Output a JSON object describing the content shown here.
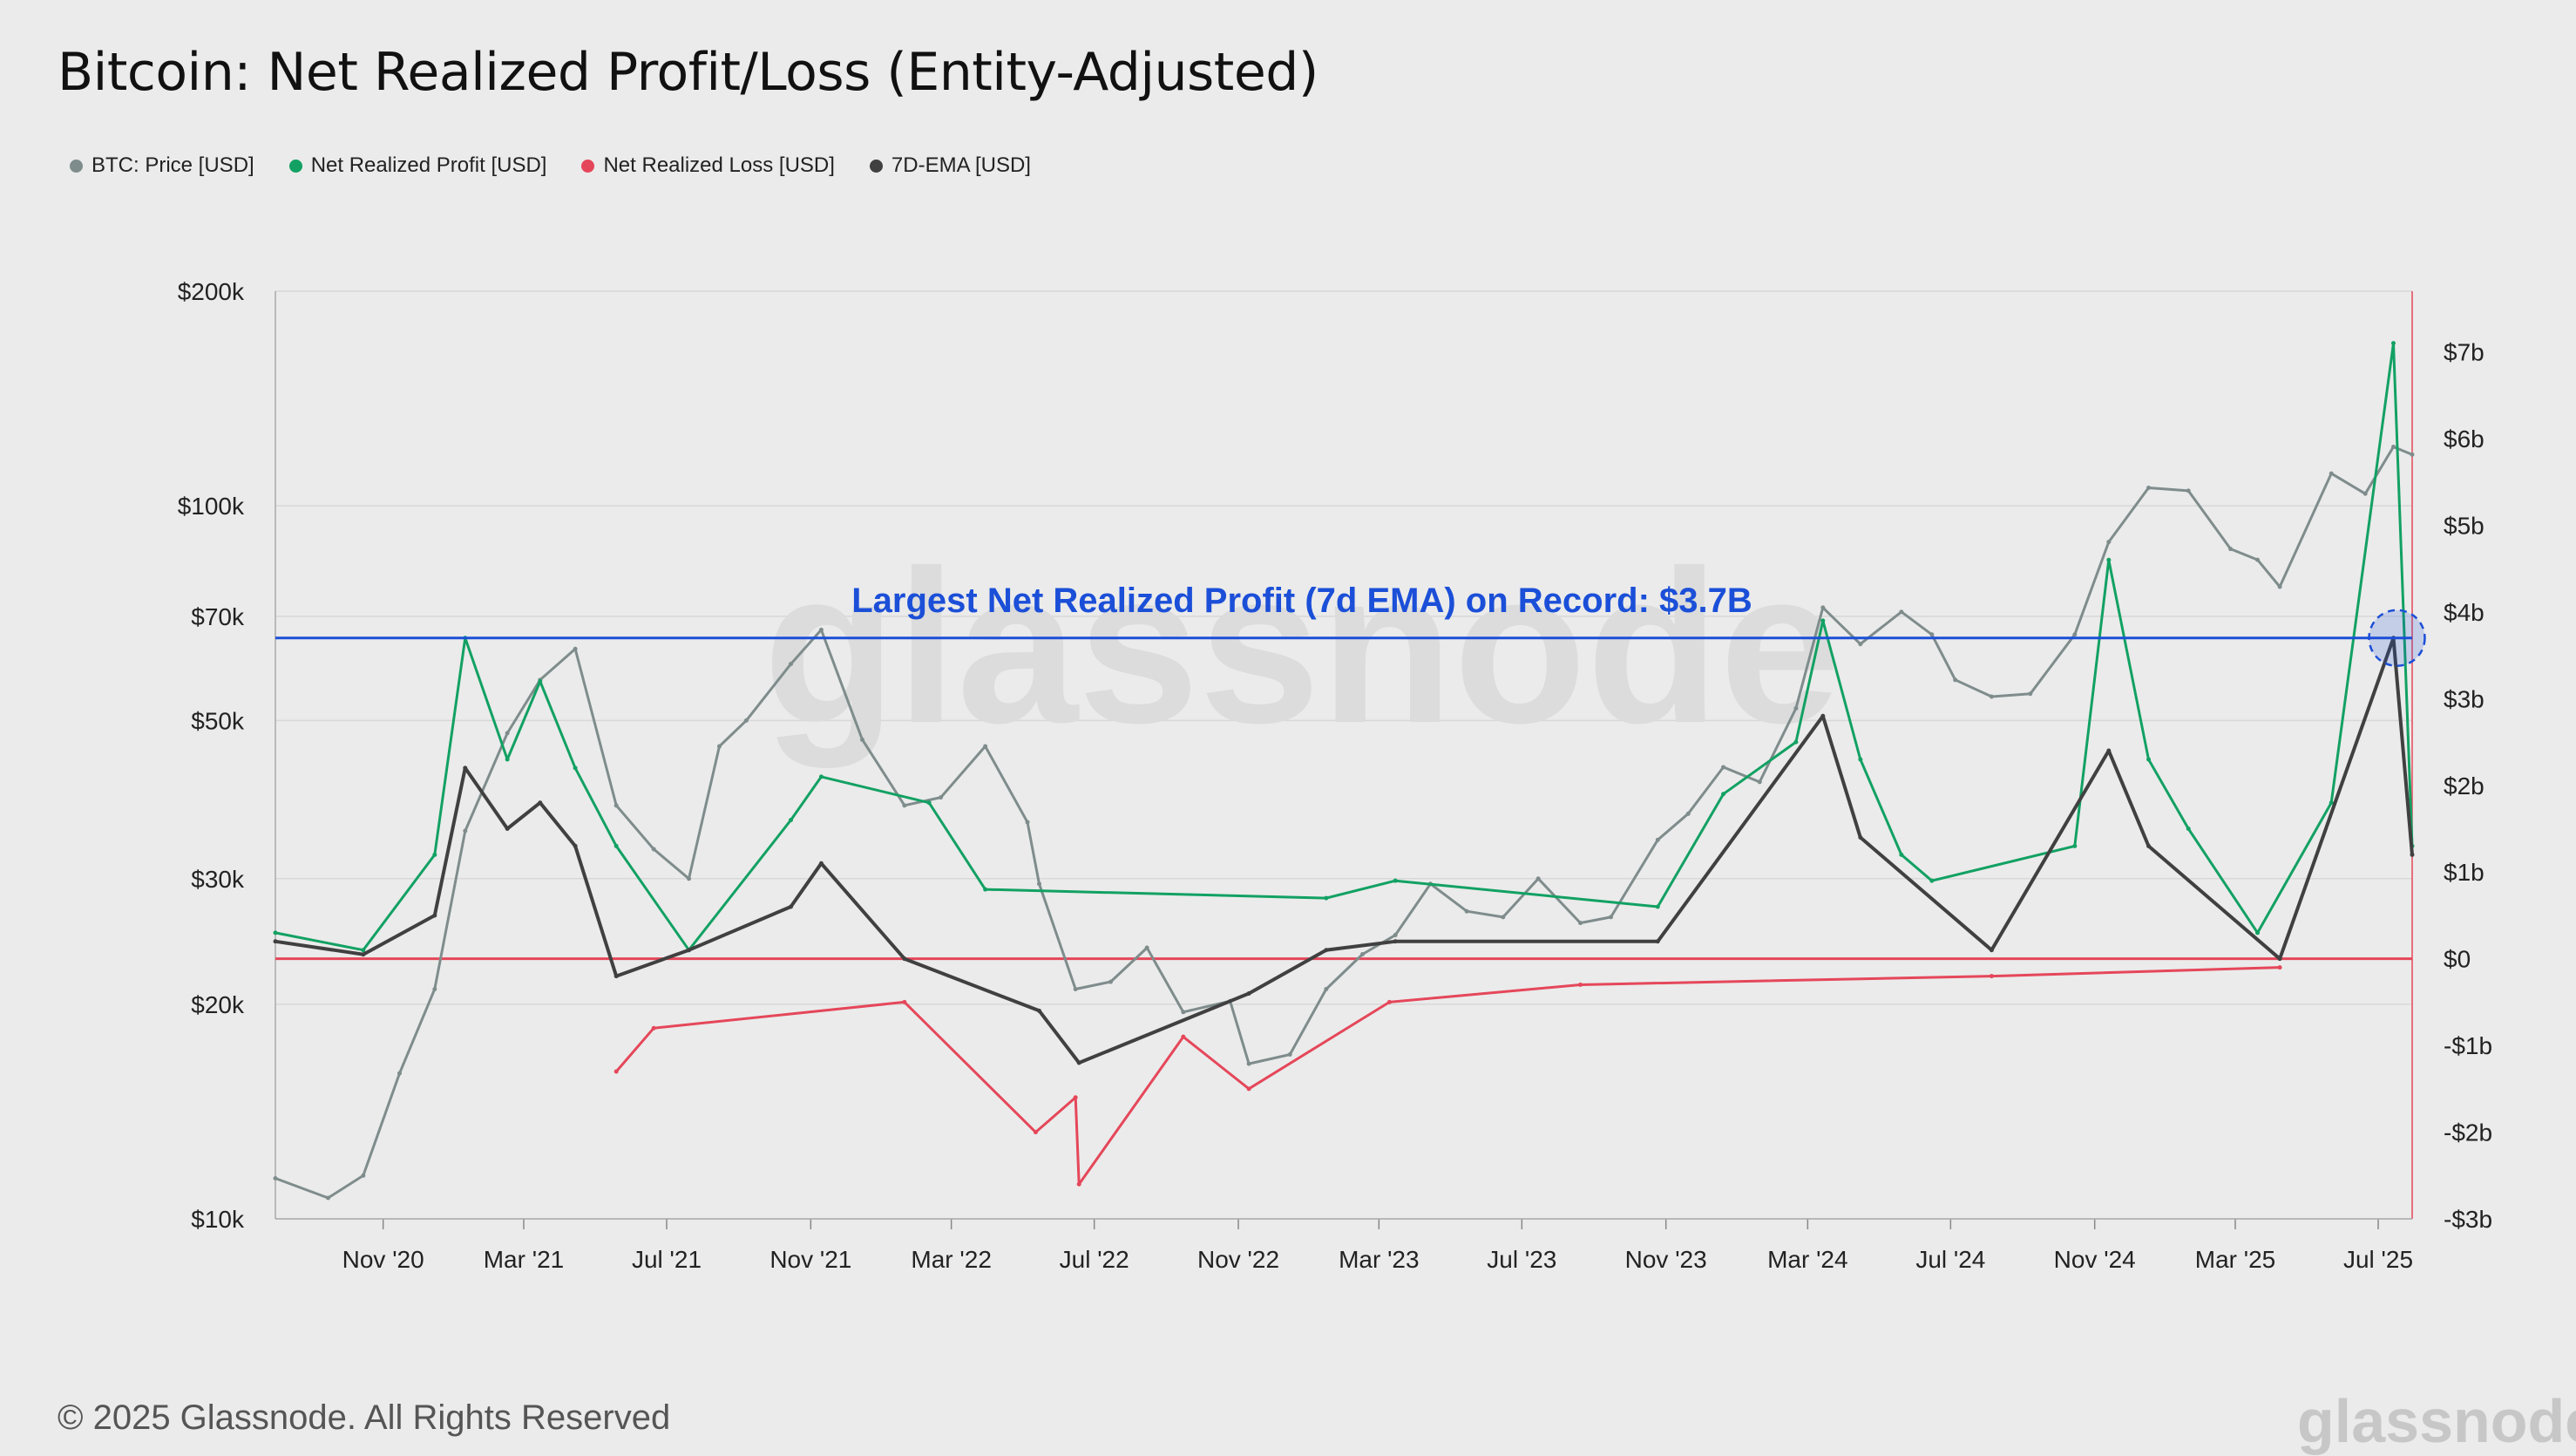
{
  "chart_data": {
    "type": "line",
    "title": "Bitcoin: Net Realized Profit/Loss (Entity-Adjusted)",
    "legend": [
      {
        "name": "BTC: Price [USD]",
        "color": "#7f8c8c"
      },
      {
        "name": "Net Realized Profit [USD]",
        "color": "#12a163"
      },
      {
        "name": "Net Realized Loss [USD]",
        "color": "#e5475a"
      },
      {
        "name": "7D-EMA [USD]",
        "color": "#404040"
      }
    ],
    "legend_position": "top-left",
    "x_ticks": [
      "Nov '20",
      "Mar '21",
      "Jul '21",
      "Nov '21",
      "Mar '22",
      "Jul '22",
      "Nov '22",
      "Mar '23",
      "Jul '23",
      "Nov '23",
      "Mar '24",
      "Jul '24",
      "Nov '24",
      "Mar '25",
      "Jul '25"
    ],
    "x_range": [
      "2020-08-01",
      "2025-07-30"
    ],
    "y_left": {
      "scale": "log",
      "range": [
        10000,
        200000
      ],
      "ticks": [
        "$200k",
        "$100k",
        "$70k",
        "$50k",
        "$30k",
        "$20k",
        "$10k"
      ],
      "tick_values": [
        200000,
        100000,
        70000,
        50000,
        30000,
        20000,
        10000
      ]
    },
    "y_right": {
      "scale": "linear",
      "range": [
        -3,
        7.7
      ],
      "unit": "billion USD",
      "ticks": [
        "$7b",
        "$6b",
        "$5b",
        "$4b",
        "$3b",
        "$2b",
        "$1b",
        "$0",
        "-$1b",
        "-$2b",
        "-$3b"
      ],
      "tick_values": [
        7,
        6,
        5,
        4,
        3,
        2,
        1,
        0,
        -1,
        -2,
        -3
      ]
    },
    "grid": true,
    "annotation": {
      "text": "Largest Net Realized Profit (7d EMA) on Record: $3.7B",
      "value": 3.7,
      "color": "#1b4fd8"
    },
    "series": [
      {
        "name": "BTC: Price [USD]",
        "axis": "left",
        "color": "#7f8c8c",
        "x": [
          "2020-08-01",
          "2020-09-15",
          "2020-10-15",
          "2020-11-15",
          "2020-12-15",
          "2021-01-10",
          "2021-02-15",
          "2021-03-15",
          "2021-04-14",
          "2021-05-19",
          "2021-06-20",
          "2021-07-20",
          "2021-08-15",
          "2021-09-07",
          "2021-10-15",
          "2021-11-10",
          "2021-12-15",
          "2022-01-20",
          "2022-02-20",
          "2022-03-30",
          "2022-05-05",
          "2022-05-15",
          "2022-06-15",
          "2022-07-15",
          "2022-08-15",
          "2022-09-15",
          "2022-10-25",
          "2022-11-10",
          "2022-12-15",
          "2023-01-15",
          "2023-02-15",
          "2023-03-15",
          "2023-04-14",
          "2023-05-15",
          "2023-06-15",
          "2023-07-15",
          "2023-08-20",
          "2023-09-15",
          "2023-10-25",
          "2023-11-20",
          "2023-12-20",
          "2024-01-20",
          "2024-02-20",
          "2024-03-14",
          "2024-04-15",
          "2024-05-20",
          "2024-06-15",
          "2024-07-05",
          "2024-08-05",
          "2024-09-07",
          "2024-10-15",
          "2024-11-13",
          "2024-12-17",
          "2025-01-20",
          "2025-02-25",
          "2025-03-20",
          "2025-04-08",
          "2025-05-22",
          "2025-06-20",
          "2025-07-14",
          "2025-07-30"
        ],
        "values": [
          11400,
          10700,
          11500,
          16000,
          21000,
          35000,
          48000,
          57000,
          63000,
          38000,
          33000,
          30000,
          46000,
          50000,
          60000,
          67000,
          47000,
          38000,
          39000,
          46000,
          36000,
          29500,
          21000,
          21500,
          24000,
          19500,
          20200,
          16500,
          17000,
          21000,
          23500,
          25000,
          29500,
          27000,
          26500,
          30000,
          26000,
          26500,
          34000,
          37000,
          43000,
          41000,
          52000,
          72000,
          64000,
          71000,
          66000,
          57000,
          54000,
          54500,
          66000,
          89000,
          106000,
          105000,
          87000,
          84000,
          77000,
          111000,
          104000,
          121000,
          118000
        ]
      },
      {
        "name": "Net Realized Profit [USD]",
        "axis": "right",
        "color": "#12a163",
        "unit": "billion USD",
        "x": [
          "2020-08-01",
          "2020-10-15",
          "2020-12-15",
          "2021-01-10",
          "2021-02-15",
          "2021-03-15",
          "2021-04-14",
          "2021-05-19",
          "2021-07-20",
          "2021-10-15",
          "2021-11-10",
          "2022-02-10",
          "2022-03-30",
          "2023-01-15",
          "2023-03-15",
          "2023-10-25",
          "2023-12-20",
          "2024-02-20",
          "2024-03-14",
          "2024-04-15",
          "2024-05-20",
          "2024-06-15",
          "2024-10-15",
          "2024-11-13",
          "2024-12-17",
          "2025-01-20",
          "2025-03-20",
          "2025-05-22",
          "2025-07-14",
          "2025-07-30"
        ],
        "values": [
          0.3,
          0.1,
          1.2,
          3.7,
          2.3,
          3.2,
          2.2,
          1.3,
          0.1,
          1.6,
          2.1,
          1.8,
          0.8,
          0.7,
          0.9,
          0.6,
          1.9,
          2.5,
          3.9,
          2.3,
          1.2,
          0.9,
          1.3,
          4.6,
          2.3,
          1.5,
          0.3,
          1.8,
          7.1,
          1.3
        ]
      },
      {
        "name": "Net Realized Loss [USD]",
        "axis": "right",
        "color": "#e5475a",
        "unit": "billion USD",
        "x": [
          "2021-05-19",
          "2021-06-20",
          "2022-01-20",
          "2022-05-12",
          "2022-06-15",
          "2022-06-18",
          "2022-09-15",
          "2022-11-10",
          "2023-03-10",
          "2023-08-20",
          "2024-08-05",
          "2025-04-08"
        ],
        "values": [
          -1.3,
          -0.8,
          -0.5,
          -2.0,
          -1.6,
          -2.6,
          -0.9,
          -1.5,
          -0.5,
          -0.3,
          -0.2,
          -0.1
        ]
      },
      {
        "name": "7D-EMA [USD]",
        "axis": "right",
        "color": "#404040",
        "unit": "billion USD",
        "x": [
          "2020-08-01",
          "2020-10-15",
          "2020-12-15",
          "2021-01-10",
          "2021-02-15",
          "2021-03-15",
          "2021-04-14",
          "2021-05-19",
          "2021-07-20",
          "2021-10-15",
          "2021-11-10",
          "2022-01-20",
          "2022-05-15",
          "2022-06-18",
          "2022-11-10",
          "2023-01-15",
          "2023-03-15",
          "2023-10-25",
          "2024-03-14",
          "2024-04-15",
          "2024-08-05",
          "2024-11-13",
          "2024-12-17",
          "2025-04-08",
          "2025-07-14",
          "2025-07-30"
        ],
        "values": [
          0.2,
          0.05,
          0.5,
          2.2,
          1.5,
          1.8,
          1.3,
          -0.2,
          0.1,
          0.6,
          1.1,
          0.0,
          -0.6,
          -1.2,
          -0.4,
          0.1,
          0.2,
          0.2,
          2.8,
          1.4,
          0.1,
          2.4,
          1.3,
          0.0,
          3.7,
          1.2
        ]
      }
    ]
  },
  "footer": {
    "copyright": "© 2025 Glassnode. All Rights Reserved",
    "logo": "glassnode"
  },
  "watermark": "glassnode",
  "colors": {
    "background": "#ebebeb",
    "grid": "#d8d8d8",
    "zero_line": "#e5475a",
    "record_line": "#1b4fd8",
    "highlight_circle": "#1b4fd8"
  }
}
